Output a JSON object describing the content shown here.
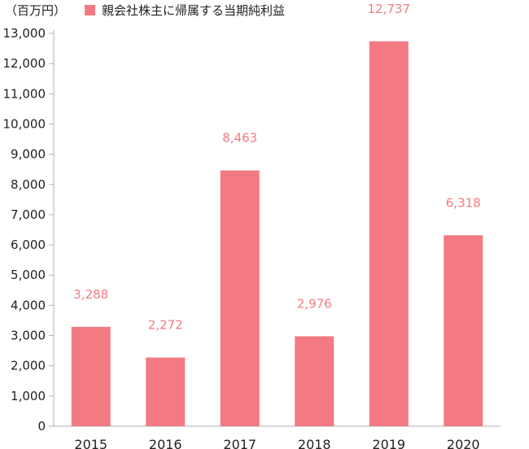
{
  "unit_label": "（百万円）",
  "colors": {
    "bar": "#f37a82",
    "axis": "#b0b0b0",
    "text": "#222222"
  },
  "chart_data": {
    "type": "bar",
    "categories": [
      "2015",
      "2016",
      "2017",
      "2018",
      "2019",
      "2020"
    ],
    "series": [
      {
        "name": "親会社株主に帰属する当期純利益",
        "values": [
          3288,
          2272,
          8463,
          2976,
          12737,
          6318
        ]
      }
    ],
    "data_labels": [
      "3,288",
      "2,272",
      "8,463",
      "2,976",
      "12,737",
      "6,318"
    ],
    "ylim": [
      0,
      13000
    ],
    "yticks": [
      0,
      1000,
      2000,
      3000,
      4000,
      5000,
      6000,
      7000,
      8000,
      9000,
      10000,
      11000,
      12000,
      13000
    ],
    "ytick_labels": [
      "0",
      "1,000",
      "2,000",
      "3,000",
      "4,000",
      "5,000",
      "6,000",
      "7,000",
      "8,000",
      "9,000",
      "10,000",
      "11,000",
      "12,000",
      "13,000"
    ],
    "grid": false,
    "legend": "top-left"
  }
}
